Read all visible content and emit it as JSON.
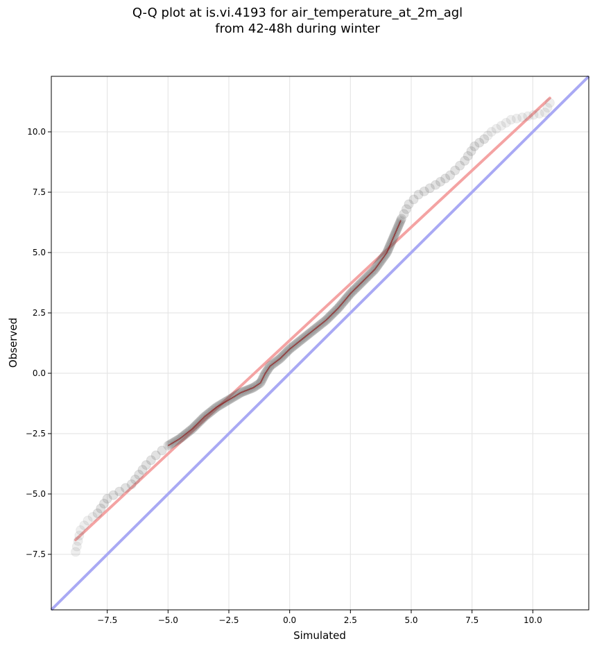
{
  "chart_data": {
    "type": "scatter",
    "title": "Q-Q plot at is.vi.4193 for air_temperature_at_2m_agl",
    "subtitle": "from 42-48h during winter",
    "xlabel": "Simulated",
    "ylabel": "Observed",
    "xlim": [
      -9.8,
      12.3
    ],
    "ylim": [
      -9.8,
      12.3
    ],
    "grid": true,
    "x_ticks": [
      -7.5,
      -5.0,
      -2.5,
      0.0,
      2.5,
      5.0,
      7.5,
      10.0
    ],
    "y_ticks": [
      -7.5,
      -5.0,
      -2.5,
      0.0,
      2.5,
      5.0,
      7.5,
      10.0
    ],
    "x_tick_labels": [
      "−7.5",
      "−5.0",
      "−2.5",
      "0.0",
      "2.5",
      "5.0",
      "7.5",
      "10.0"
    ],
    "y_tick_labels": [
      "−7.5",
      "−5.0",
      "−2.5",
      "0.0",
      "2.5",
      "5.0",
      "7.5",
      "10.0"
    ],
    "quantile_curve": [
      [
        -8.8,
        -7.4
      ],
      [
        -8.6,
        -6.5
      ],
      [
        -8.3,
        -6.1
      ],
      [
        -7.9,
        -5.8
      ],
      [
        -7.5,
        -5.2
      ],
      [
        -7.0,
        -4.9
      ],
      [
        -6.5,
        -4.6
      ],
      [
        -6.2,
        -4.2
      ],
      [
        -5.9,
        -3.8
      ],
      [
        -5.5,
        -3.4
      ],
      [
        -5.0,
        -3.0
      ],
      [
        -4.5,
        -2.7
      ],
      [
        -4.0,
        -2.3
      ],
      [
        -3.5,
        -1.8
      ],
      [
        -3.0,
        -1.4
      ],
      [
        -2.5,
        -1.1
      ],
      [
        -2.0,
        -0.8
      ],
      [
        -1.5,
        -0.6
      ],
      [
        -1.2,
        -0.4
      ],
      [
        -1.0,
        0.0
      ],
      [
        -0.8,
        0.3
      ],
      [
        -0.4,
        0.6
      ],
      [
        0.0,
        1.0
      ],
      [
        0.5,
        1.4
      ],
      [
        1.0,
        1.8
      ],
      [
        1.5,
        2.2
      ],
      [
        2.0,
        2.7
      ],
      [
        2.5,
        3.3
      ],
      [
        3.0,
        3.8
      ],
      [
        3.5,
        4.3
      ],
      [
        4.0,
        5.0
      ],
      [
        4.3,
        5.7
      ],
      [
        4.6,
        6.4
      ],
      [
        4.9,
        7.0
      ],
      [
        5.3,
        7.4
      ],
      [
        6.0,
        7.8
      ],
      [
        6.6,
        8.2
      ],
      [
        7.2,
        8.8
      ],
      [
        7.6,
        9.4
      ],
      [
        8.0,
        9.7
      ],
      [
        8.3,
        10.0
      ],
      [
        9.1,
        10.5
      ],
      [
        10.5,
        10.8
      ],
      [
        10.7,
        11.2
      ]
    ],
    "series": [
      {
        "type": "fit_line",
        "color": "#f4a3a3",
        "x": [
          -8.8,
          10.7
        ],
        "y": [
          -6.9,
          11.4
        ]
      },
      {
        "type": "identity_line",
        "color": "#a9a9f4",
        "x": [
          -9.8,
          12.3
        ],
        "y": [
          -9.8,
          12.3
        ]
      }
    ],
    "colors": {
      "points": "#555555",
      "fit": "#f4a3a3",
      "identity": "#a9a9f4",
      "dense_core": "#8b0000"
    }
  }
}
